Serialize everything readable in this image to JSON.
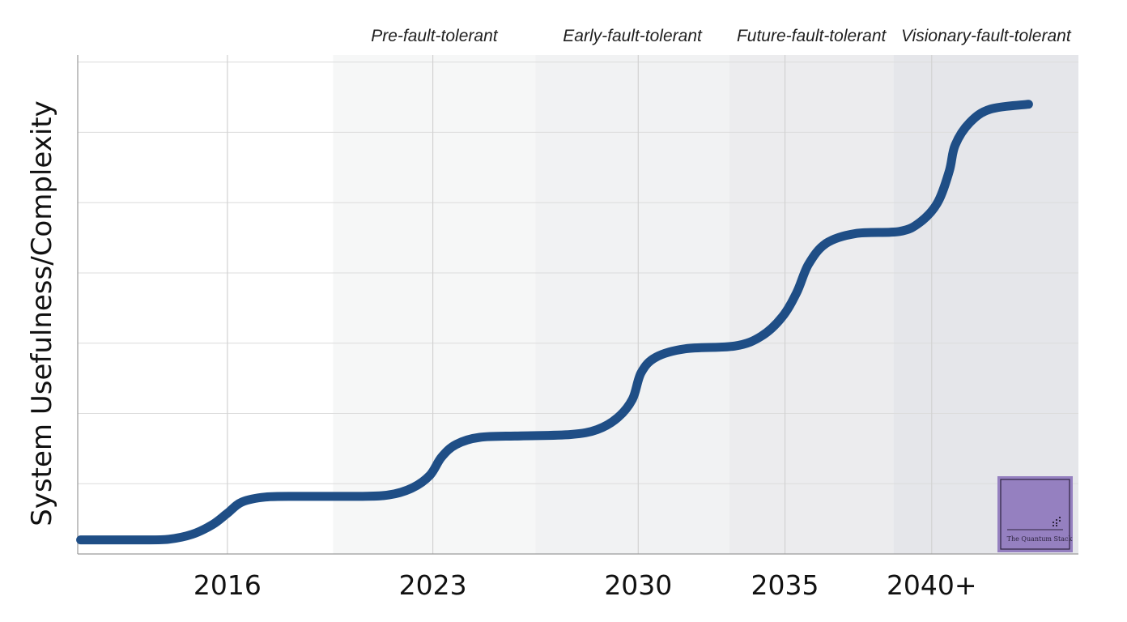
{
  "chart_data": {
    "type": "line",
    "title": "",
    "xlabel": "",
    "ylabel": "System Usefulness/Complexity",
    "grid": true,
    "legend": "none",
    "x_ticks": [
      {
        "label": "2016",
        "x": 2016
      },
      {
        "label": "2023",
        "x": 2023
      },
      {
        "label": "2030",
        "x": 2030
      },
      {
        "label": "2035",
        "x": 2035
      },
      {
        "label": "2040+",
        "x": 2040
      }
    ],
    "xlim": [
      2010.9,
      2045
    ],
    "ylim": [
      0,
      7.1
    ],
    "phases": [
      {
        "label": "Pre-fault-tolerant",
        "start": 2019.6,
        "end": 2026.5
      },
      {
        "label": "Early-fault-tolerant",
        "start": 2026.5,
        "end": 2033.1
      },
      {
        "label": "Future-fault-tolerant",
        "start": 2033.1,
        "end": 2038.7
      },
      {
        "label": "Visionary-fault-tolerant",
        "start": 2038.7,
        "end": 2045
      }
    ],
    "series": [
      {
        "color": "#1f4e86",
        "points": [
          [
            2011.0,
            0.2
          ],
          [
            2013.0,
            0.2
          ],
          [
            2014.0,
            0.21
          ],
          [
            2014.8,
            0.28
          ],
          [
            2015.5,
            0.42
          ],
          [
            2016.0,
            0.58
          ],
          [
            2016.5,
            0.74
          ],
          [
            2017.3,
            0.81
          ],
          [
            2018.5,
            0.82
          ],
          [
            2020.5,
            0.82
          ],
          [
            2021.5,
            0.84
          ],
          [
            2022.3,
            0.94
          ],
          [
            2022.9,
            1.12
          ],
          [
            2023.3,
            1.38
          ],
          [
            2023.8,
            1.56
          ],
          [
            2024.6,
            1.66
          ],
          [
            2026.0,
            1.68
          ],
          [
            2027.7,
            1.7
          ],
          [
            2028.6,
            1.77
          ],
          [
            2029.3,
            1.94
          ],
          [
            2029.8,
            2.2
          ],
          [
            2030.1,
            2.58
          ],
          [
            2030.6,
            2.8
          ],
          [
            2031.6,
            2.92
          ],
          [
            2033.3,
            2.96
          ],
          [
            2034.2,
            3.1
          ],
          [
            2034.9,
            3.37
          ],
          [
            2035.4,
            3.72
          ],
          [
            2035.8,
            4.12
          ],
          [
            2036.4,
            4.42
          ],
          [
            2037.4,
            4.56
          ],
          [
            2038.9,
            4.59
          ],
          [
            2039.6,
            4.72
          ],
          [
            2040.2,
            5.0
          ],
          [
            2040.6,
            5.45
          ],
          [
            2040.8,
            5.82
          ],
          [
            2041.3,
            6.14
          ],
          [
            2042.0,
            6.33
          ],
          [
            2043.3,
            6.4
          ]
        ]
      }
    ]
  },
  "watermark": {
    "text": "The Quantum Stack",
    "bg": "#9580c0",
    "border": "#2e2440"
  }
}
